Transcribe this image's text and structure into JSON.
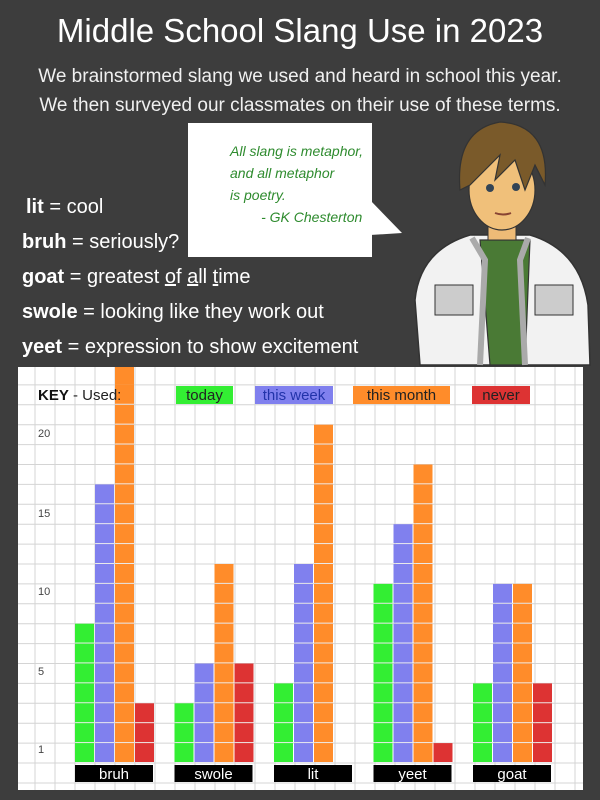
{
  "header": {
    "title": "Middle School Slang Use in 2023",
    "subtitle_1": "We brainstormed slang we used and heard in school this year.",
    "subtitle_2": "We then surveyed our classmates on their use of these terms."
  },
  "quote": {
    "lines": [
      "All slang is metaphor,",
      "and all metaphor",
      "is poetry."
    ],
    "author": "        - GK Chesterton"
  },
  "definitions": [
    {
      "term": "lit",
      "meaning": "cool"
    },
    {
      "term": "bruh",
      "meaning": "seriously?"
    },
    {
      "term": "goat",
      "meaning_parts": [
        "greatest ",
        "o",
        "f ",
        "a",
        "ll ",
        "t",
        "ime"
      ]
    },
    {
      "term": "swole",
      "meaning": "looking like they work out"
    },
    {
      "term": "yeet",
      "meaning": "expression to show excitement"
    }
  ],
  "chart_data": {
    "type": "bar",
    "title": "",
    "key_label": "KEY",
    "key_sep": " - Used:",
    "categories": [
      "bruh",
      "swole",
      "lit",
      "yeet",
      "goat"
    ],
    "series": [
      {
        "name": "today",
        "color": "#33ee33",
        "values": [
          7,
          3,
          4,
          9,
          4
        ]
      },
      {
        "name": "this week",
        "color": "#8080ee",
        "values": [
          14,
          5,
          10,
          12,
          9
        ]
      },
      {
        "name": "this month",
        "color": "#ff8c2a",
        "values": [
          20,
          10,
          17,
          15,
          9
        ]
      },
      {
        "name": "never",
        "color": "#dd3333",
        "values": [
          3,
          5,
          0,
          1,
          4
        ]
      }
    ],
    "y_tick_labels": [
      "20",
      "15",
      "10",
      "5",
      "1"
    ],
    "grid": true,
    "legend_placement": "top"
  }
}
